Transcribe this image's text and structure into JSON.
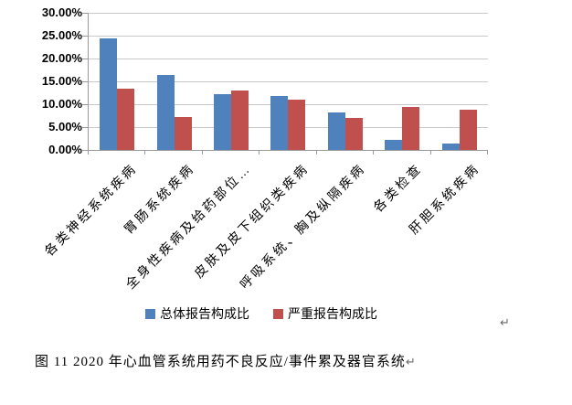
{
  "page": {
    "background": "#ffffff",
    "paragraph_mark": "↵"
  },
  "chart_data": {
    "type": "bar",
    "title": "",
    "categories": [
      "各类神经系统疾病",
      "胃肠系统疾病",
      "全身性疾病及给药部位…",
      "皮肤及皮下组织类疾病",
      "呼吸系统、胸及纵隔疾病",
      "各类检查",
      "肝胆系统疾病"
    ],
    "series": [
      {
        "name": "总体报告构成比",
        "color": "#4F81BD",
        "values": [
          24.5,
          16.4,
          12.3,
          11.9,
          8.3,
          2.3,
          1.5
        ]
      },
      {
        "name": "严重报告构成比",
        "color": "#C0504D",
        "values": [
          13.5,
          7.2,
          13.1,
          11.1,
          7.0,
          9.5,
          8.8
        ]
      }
    ],
    "xlabel": "",
    "ylabel": "",
    "ylim": [
      0,
      30
    ],
    "ytick_step": 5,
    "ytick_labels": [
      "30.00%",
      "25.00%",
      "20.00%",
      "15.00%",
      "10.00%",
      "5.00%",
      "0.00%"
    ],
    "grid": true,
    "legend_position": "bottom"
  },
  "caption": {
    "text": "图 11  2020 年心血管系统用药不良反应/事件累及器官系统",
    "return_mark": "↵"
  }
}
